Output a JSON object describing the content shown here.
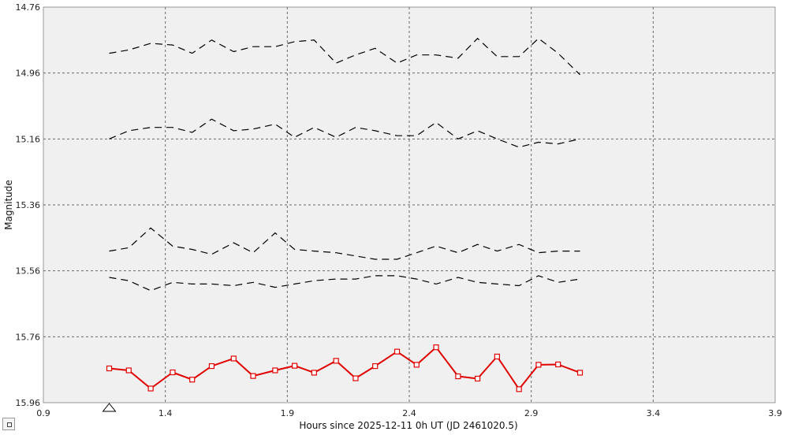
{
  "chart_data": {
    "type": "line",
    "xlabel": "Hours since 2025-12-11 0h UT (JD 2461020.5)",
    "ylabel": "Magnitude",
    "xlim": [
      0.9,
      3.9
    ],
    "ylim": [
      14.76,
      15.96
    ],
    "y_inverted": true,
    "x_ticks": [
      0.9,
      1.4,
      1.9,
      2.4,
      2.9,
      3.4,
      3.9
    ],
    "y_ticks": [
      14.76,
      14.96,
      15.16,
      15.36,
      15.56,
      15.76,
      15.96
    ],
    "x_tick_labels": [
      "0.9",
      "1.4",
      "1.9",
      "2.4",
      "2.9",
      "3.4",
      "3.9"
    ],
    "y_tick_labels": [
      "14.76",
      "14.96",
      "15.16",
      "15.36",
      "15.56",
      "15.76",
      "15.96"
    ],
    "grid": true,
    "x": [
      1.17,
      1.25,
      1.34,
      1.43,
      1.51,
      1.59,
      1.68,
      1.76,
      1.85,
      1.93,
      2.01,
      2.1,
      2.18,
      2.26,
      2.35,
      2.43,
      2.51,
      2.6,
      2.68,
      2.76,
      2.85,
      2.93,
      3.01,
      3.1
    ],
    "series": [
      {
        "style": "dashed",
        "color": "#000000",
        "values": [
          14.9,
          14.89,
          14.87,
          14.875,
          14.9,
          14.86,
          14.895,
          14.88,
          14.88,
          14.865,
          14.86,
          14.93,
          14.905,
          14.885,
          14.93,
          14.905,
          14.905,
          14.915,
          14.855,
          14.91,
          14.91,
          14.855,
          14.9,
          14.965
        ]
      },
      {
        "style": "dashed",
        "color": "#000000",
        "values": [
          15.16,
          15.135,
          15.125,
          15.125,
          15.14,
          15.1,
          15.135,
          15.13,
          15.115,
          15.155,
          15.125,
          15.155,
          15.125,
          15.135,
          15.15,
          15.15,
          15.11,
          15.16,
          15.135,
          15.16,
          15.185,
          15.17,
          15.175,
          15.16
        ]
      },
      {
        "style": "dashed",
        "color": "#000000",
        "values": [
          15.5,
          15.49,
          15.43,
          15.485,
          15.495,
          15.51,
          15.475,
          15.505,
          15.445,
          15.495,
          15.5,
          15.505,
          15.515,
          15.525,
          15.525,
          15.505,
          15.485,
          15.505,
          15.48,
          15.5,
          15.48,
          15.505,
          15.5,
          15.5
        ]
      },
      {
        "style": "dashed",
        "color": "#000000",
        "values": [
          15.58,
          15.59,
          15.62,
          15.595,
          15.6,
          15.6,
          15.605,
          15.595,
          15.61,
          15.6,
          15.59,
          15.585,
          15.585,
          15.575,
          15.575,
          15.585,
          15.6,
          15.58,
          15.595,
          15.6,
          15.605,
          15.575,
          15.595,
          15.585
        ]
      },
      {
        "style": "solid-markers",
        "color": "#e00000",
        "values": [
          15.856,
          15.862,
          15.917,
          15.868,
          15.89,
          15.849,
          15.826,
          15.879,
          15.862,
          15.848,
          15.869,
          15.833,
          15.886,
          15.849,
          15.805,
          15.845,
          15.792,
          15.88,
          15.887,
          15.82,
          15.919,
          15.845,
          15.844,
          15.869
        ]
      }
    ],
    "markers": [
      {
        "shape": "triangle",
        "x": 1.17,
        "y": 15.96
      }
    ]
  }
}
